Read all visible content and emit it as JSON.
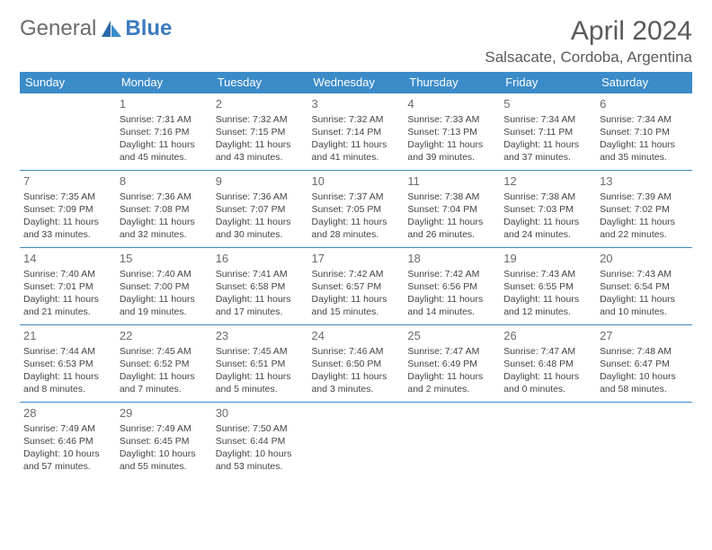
{
  "logo": {
    "text1": "General",
    "text2": "Blue"
  },
  "title": "April 2024",
  "location": "Salsacate, Cordoba, Argentina",
  "brand_color": "#3b8bc9",
  "header_bg": "#3b8bc9",
  "header_fg": "#ffffff",
  "day_headers": [
    "Sunday",
    "Monday",
    "Tuesday",
    "Wednesday",
    "Thursday",
    "Friday",
    "Saturday"
  ],
  "weeks": [
    [
      null,
      {
        "n": "1",
        "sr": "Sunrise: 7:31 AM",
        "ss": "Sunset: 7:16 PM",
        "dl": "Daylight: 11 hours and 45 minutes."
      },
      {
        "n": "2",
        "sr": "Sunrise: 7:32 AM",
        "ss": "Sunset: 7:15 PM",
        "dl": "Daylight: 11 hours and 43 minutes."
      },
      {
        "n": "3",
        "sr": "Sunrise: 7:32 AM",
        "ss": "Sunset: 7:14 PM",
        "dl": "Daylight: 11 hours and 41 minutes."
      },
      {
        "n": "4",
        "sr": "Sunrise: 7:33 AM",
        "ss": "Sunset: 7:13 PM",
        "dl": "Daylight: 11 hours and 39 minutes."
      },
      {
        "n": "5",
        "sr": "Sunrise: 7:34 AM",
        "ss": "Sunset: 7:11 PM",
        "dl": "Daylight: 11 hours and 37 minutes."
      },
      {
        "n": "6",
        "sr": "Sunrise: 7:34 AM",
        "ss": "Sunset: 7:10 PM",
        "dl": "Daylight: 11 hours and 35 minutes."
      }
    ],
    [
      {
        "n": "7",
        "sr": "Sunrise: 7:35 AM",
        "ss": "Sunset: 7:09 PM",
        "dl": "Daylight: 11 hours and 33 minutes."
      },
      {
        "n": "8",
        "sr": "Sunrise: 7:36 AM",
        "ss": "Sunset: 7:08 PM",
        "dl": "Daylight: 11 hours and 32 minutes."
      },
      {
        "n": "9",
        "sr": "Sunrise: 7:36 AM",
        "ss": "Sunset: 7:07 PM",
        "dl": "Daylight: 11 hours and 30 minutes."
      },
      {
        "n": "10",
        "sr": "Sunrise: 7:37 AM",
        "ss": "Sunset: 7:05 PM",
        "dl": "Daylight: 11 hours and 28 minutes."
      },
      {
        "n": "11",
        "sr": "Sunrise: 7:38 AM",
        "ss": "Sunset: 7:04 PM",
        "dl": "Daylight: 11 hours and 26 minutes."
      },
      {
        "n": "12",
        "sr": "Sunrise: 7:38 AM",
        "ss": "Sunset: 7:03 PM",
        "dl": "Daylight: 11 hours and 24 minutes."
      },
      {
        "n": "13",
        "sr": "Sunrise: 7:39 AM",
        "ss": "Sunset: 7:02 PM",
        "dl": "Daylight: 11 hours and 22 minutes."
      }
    ],
    [
      {
        "n": "14",
        "sr": "Sunrise: 7:40 AM",
        "ss": "Sunset: 7:01 PM",
        "dl": "Daylight: 11 hours and 21 minutes."
      },
      {
        "n": "15",
        "sr": "Sunrise: 7:40 AM",
        "ss": "Sunset: 7:00 PM",
        "dl": "Daylight: 11 hours and 19 minutes."
      },
      {
        "n": "16",
        "sr": "Sunrise: 7:41 AM",
        "ss": "Sunset: 6:58 PM",
        "dl": "Daylight: 11 hours and 17 minutes."
      },
      {
        "n": "17",
        "sr": "Sunrise: 7:42 AM",
        "ss": "Sunset: 6:57 PM",
        "dl": "Daylight: 11 hours and 15 minutes."
      },
      {
        "n": "18",
        "sr": "Sunrise: 7:42 AM",
        "ss": "Sunset: 6:56 PM",
        "dl": "Daylight: 11 hours and 14 minutes."
      },
      {
        "n": "19",
        "sr": "Sunrise: 7:43 AM",
        "ss": "Sunset: 6:55 PM",
        "dl": "Daylight: 11 hours and 12 minutes."
      },
      {
        "n": "20",
        "sr": "Sunrise: 7:43 AM",
        "ss": "Sunset: 6:54 PM",
        "dl": "Daylight: 11 hours and 10 minutes."
      }
    ],
    [
      {
        "n": "21",
        "sr": "Sunrise: 7:44 AM",
        "ss": "Sunset: 6:53 PM",
        "dl": "Daylight: 11 hours and 8 minutes."
      },
      {
        "n": "22",
        "sr": "Sunrise: 7:45 AM",
        "ss": "Sunset: 6:52 PM",
        "dl": "Daylight: 11 hours and 7 minutes."
      },
      {
        "n": "23",
        "sr": "Sunrise: 7:45 AM",
        "ss": "Sunset: 6:51 PM",
        "dl": "Daylight: 11 hours and 5 minutes."
      },
      {
        "n": "24",
        "sr": "Sunrise: 7:46 AM",
        "ss": "Sunset: 6:50 PM",
        "dl": "Daylight: 11 hours and 3 minutes."
      },
      {
        "n": "25",
        "sr": "Sunrise: 7:47 AM",
        "ss": "Sunset: 6:49 PM",
        "dl": "Daylight: 11 hours and 2 minutes."
      },
      {
        "n": "26",
        "sr": "Sunrise: 7:47 AM",
        "ss": "Sunset: 6:48 PM",
        "dl": "Daylight: 11 hours and 0 minutes."
      },
      {
        "n": "27",
        "sr": "Sunrise: 7:48 AM",
        "ss": "Sunset: 6:47 PM",
        "dl": "Daylight: 10 hours and 58 minutes."
      }
    ],
    [
      {
        "n": "28",
        "sr": "Sunrise: 7:49 AM",
        "ss": "Sunset: 6:46 PM",
        "dl": "Daylight: 10 hours and 57 minutes."
      },
      {
        "n": "29",
        "sr": "Sunrise: 7:49 AM",
        "ss": "Sunset: 6:45 PM",
        "dl": "Daylight: 10 hours and 55 minutes."
      },
      {
        "n": "30",
        "sr": "Sunrise: 7:50 AM",
        "ss": "Sunset: 6:44 PM",
        "dl": "Daylight: 10 hours and 53 minutes."
      },
      null,
      null,
      null,
      null
    ]
  ]
}
